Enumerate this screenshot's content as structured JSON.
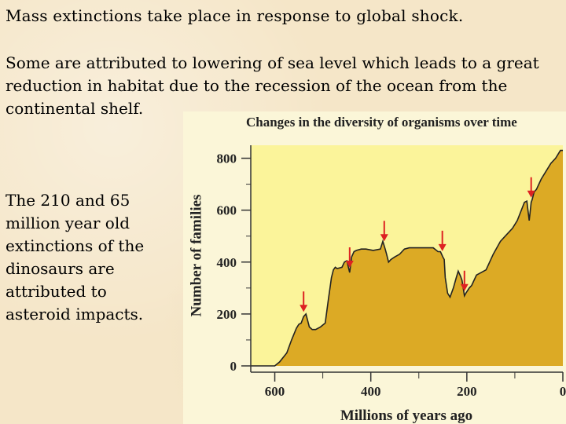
{
  "slide": {
    "line1": "Mass extinctions take place in response to global shock.",
    "para2": [
      "Some are attributed to lowering of sea level which leads to a  great",
      "reduction in habitat due to the recession of the ocean from the",
      "continental shelf."
    ],
    "side_text": [
      "The 210 and 65",
      "million year old",
      "extinctions of the",
      "dinosaurs are",
      "attributed to",
      "asteroid impacts."
    ]
  },
  "colors": {
    "background": "#f5e6c8",
    "chart_background": "#fbf49a",
    "area_fill": "#dcaa25",
    "arrow": "#dd2222"
  },
  "chart_data": {
    "type": "area",
    "title": "Changes in the diversity of organisms over time",
    "xlabel": "Millions of years ago",
    "ylabel": "Number of families",
    "xlim": [
      650,
      0
    ],
    "ylim": [
      0,
      850
    ],
    "x_ticks": [
      "600",
      "400",
      "200",
      "0"
    ],
    "x_tick_values": [
      600,
      400,
      200,
      0
    ],
    "y_ticks": [
      "0",
      "200",
      "400",
      "600",
      "800"
    ],
    "y_tick_values": [
      0,
      200,
      400,
      600,
      800
    ],
    "series": [
      {
        "x": [
          650,
          610,
          600,
          590,
          575,
          565,
          555,
          550,
          545,
          540,
          535,
          528,
          522,
          515,
          505,
          495,
          488,
          485,
          482,
          478,
          474,
          470,
          460,
          455,
          450,
          444,
          440,
          435,
          430,
          420,
          410,
          395,
          380,
          375,
          370,
          367,
          363,
          358,
          350,
          340,
          330,
          320,
          300,
          280,
          270,
          260,
          255,
          250,
          247,
          245,
          240,
          235,
          228,
          222,
          218,
          213,
          210,
          205,
          202,
          195,
          190,
          180,
          160,
          145,
          130,
          120,
          105,
          95,
          80,
          75,
          70,
          66,
          64,
          60,
          55,
          45,
          35,
          25,
          15,
          5,
          0
        ],
        "y": [
          0,
          0,
          0,
          15,
          50,
          100,
          145,
          160,
          165,
          190,
          200,
          150,
          140,
          140,
          150,
          165,
          260,
          300,
          340,
          370,
          380,
          375,
          380,
          400,
          405,
          360,
          420,
          440,
          445,
          450,
          450,
          445,
          450,
          480,
          450,
          430,
          400,
          410,
          420,
          430,
          450,
          455,
          455,
          455,
          455,
          440,
          440,
          420,
          410,
          340,
          280,
          265,
          300,
          340,
          365,
          345,
          330,
          270,
          280,
          300,
          310,
          350,
          370,
          430,
          480,
          500,
          530,
          560,
          630,
          635,
          560,
          630,
          640,
          670,
          680,
          720,
          750,
          780,
          800,
          830,
          830
        ]
      }
    ],
    "extinction_arrows_mya": [
      540,
      444,
      372,
      251,
      205,
      66
    ],
    "grid": false,
    "legend": "none"
  }
}
